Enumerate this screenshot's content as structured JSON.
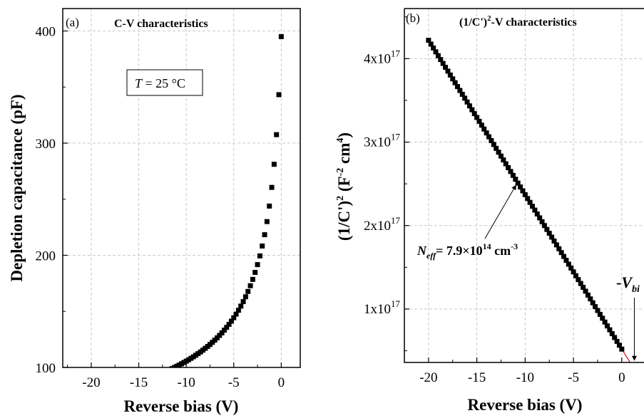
{
  "chart_data": [
    {
      "type": "scatter",
      "panel_label": "(a)",
      "title": "C-V characteristics",
      "xlabel": "Reverse bias (V)",
      "ylabel": "Depletion capacitance (pF)",
      "xlim": [
        -23,
        2
      ],
      "ylim": [
        100,
        420
      ],
      "xticks": [
        -20,
        -15,
        -10,
        -5,
        0
      ],
      "yticks": [
        100,
        200,
        300,
        400
      ],
      "xtick_labels": [
        "-20",
        "-15",
        "-10",
        "-5",
        "0"
      ],
      "ytick_labels": [
        "100",
        "200",
        "300",
        "400"
      ],
      "grid": true,
      "marker": "square",
      "color": "#000000",
      "annotation_box": {
        "var": "T",
        "text": " = 25 °C"
      },
      "C0": 395.0,
      "Vbi": 0.77,
      "series": [
        {
          "x_start": -20,
          "x_end": 0,
          "step": 0.25
        }
      ]
    },
    {
      "type": "scatter",
      "panel_label": "(b)",
      "title_parts": [
        "(1/C')",
        "2",
        "-V characteristics"
      ],
      "xlabel": "Reverse bias (V)",
      "ylabel_parts": [
        "(1/C')",
        "2",
        " (F",
        "-2",
        " cm",
        "4",
        ")"
      ],
      "xlim": [
        -22.5,
        2.3
      ],
      "ylim": [
        3.6e+16,
        4.6e+17
      ],
      "xticks": [
        -20,
        -15,
        -10,
        -5,
        0
      ],
      "yticks": [
        1e+17,
        2e+17,
        3e+17,
        4e+17
      ],
      "xtick_labels": [
        "-20",
        "-15",
        "-10",
        "-5",
        "0"
      ],
      "ytick_parts": [
        [
          "1x10",
          "17"
        ],
        [
          "2x10",
          "17"
        ],
        [
          "3x10",
          "17"
        ],
        [
          "4x10",
          "17"
        ]
      ],
      "grid": true,
      "marker": "square",
      "color": "#000000",
      "fit_line_color": "#d02020",
      "slope": -1.85e+16,
      "intercept": 5.2e+16,
      "fit_range": [
        -20,
        2.3
      ],
      "series": [
        {
          "x_start": -20,
          "x_end": 0,
          "step": 0.25
        }
      ],
      "neff_label": {
        "sym": "N",
        "sub": "eff",
        "text": "= 7.9×10",
        "exp": "14",
        "unit": " cm",
        "unit_exp": "-3"
      },
      "neff_point_x": -10.8,
      "vbi_label": {
        "sign": "-",
        "sym": "V",
        "sub": "bi"
      },
      "vbi_x": 1.3
    }
  ]
}
